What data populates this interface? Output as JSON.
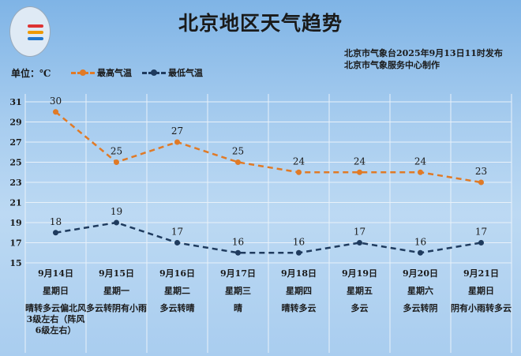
{
  "title": "北京地区天气趋势",
  "unit_label": "单位：℃",
  "publisher": [
    "北京市气象台2025年9月13日11时发布",
    "北京市气象服务中心制作"
  ],
  "colors": {
    "high": "#e07a26",
    "low": "#1f3b5e"
  },
  "chart_data": {
    "type": "line",
    "title": "北京地区天气趋势",
    "ylabel": "单位：℃",
    "ylim": [
      15,
      31
    ],
    "yticks": [
      31,
      29,
      27,
      25,
      23,
      21,
      19,
      17,
      15
    ],
    "grid": true,
    "legend_position": "top-left",
    "categories": [
      "9月14日",
      "9月15日",
      "9月16日",
      "9月17日",
      "9月18日",
      "9月19日",
      "9月20日",
      "9月21日"
    ],
    "weekdays": [
      "星期日",
      "星期一",
      "星期二",
      "星期三",
      "星期四",
      "星期五",
      "星期六",
      "星期日"
    ],
    "weather": [
      "晴转多云偏北风3级左右（阵风6级左右）",
      "多云转阴有小雨",
      "多云转晴",
      "晴",
      "晴转多云",
      "多云",
      "多云转阴",
      "阴有小雨转多云"
    ],
    "series": [
      {
        "name": "最高气温",
        "values": [
          30,
          25,
          27,
          25,
          24,
          24,
          24,
          23
        ]
      },
      {
        "name": "最低气温",
        "values": [
          18,
          19,
          17,
          16,
          16,
          17,
          16,
          17
        ]
      }
    ]
  }
}
